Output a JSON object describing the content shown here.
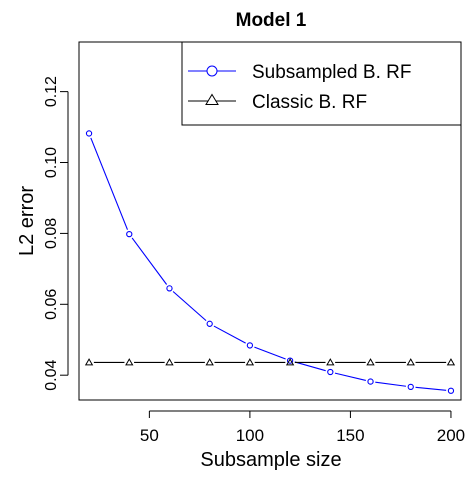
{
  "chart_data": {
    "type": "line",
    "title": "Model 1",
    "xlabel": "Subsample size",
    "ylabel": "L2 error",
    "xlim": [
      15,
      205
    ],
    "ylim": [
      0.033,
      0.134
    ],
    "x_ticks": [
      50,
      100,
      150,
      200
    ],
    "y_ticks": [
      0.04,
      0.06,
      0.08,
      0.1,
      0.12
    ],
    "y_tick_labels": [
      "0.04",
      "0.06",
      "0.08",
      "0.10",
      "0.12"
    ],
    "grid": false,
    "legend_position": "top-right",
    "series": [
      {
        "name": "Subsampled B. RF",
        "color": "#0000ff",
        "marker": "circle",
        "x": [
          20,
          40,
          60,
          80,
          100,
          120,
          140,
          160,
          180,
          200
        ],
        "values": [
          0.1082,
          0.0798,
          0.0645,
          0.0545,
          0.0484,
          0.0441,
          0.0409,
          0.0382,
          0.0367,
          0.0356
        ]
      },
      {
        "name": "Classic B. RF",
        "color": "#000000",
        "marker": "triangle",
        "x": [
          20,
          40,
          60,
          80,
          100,
          120,
          140,
          160,
          180,
          200
        ],
        "values": [
          0.0436,
          0.0436,
          0.0436,
          0.0436,
          0.0436,
          0.0436,
          0.0436,
          0.0436,
          0.0436,
          0.0436
        ]
      }
    ]
  }
}
